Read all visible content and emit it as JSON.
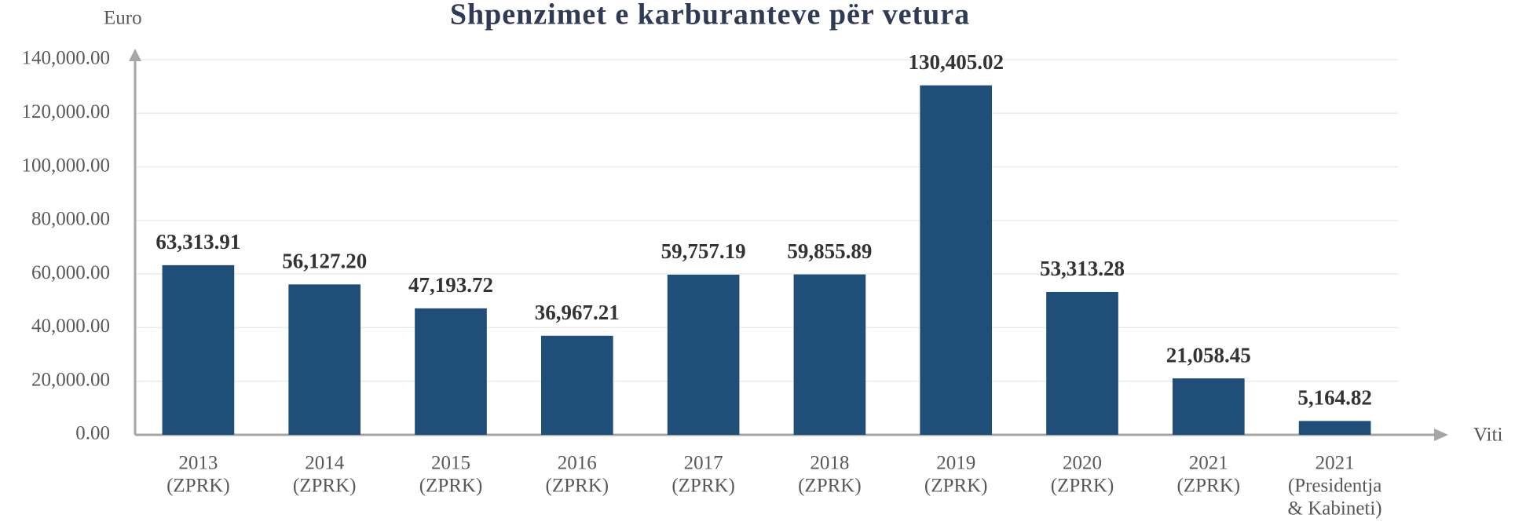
{
  "chart_data": {
    "type": "bar",
    "title": "Shpenzimet e karburanteve për vetura",
    "y_label": "Euro",
    "x_label": "Viti",
    "categories": [
      [
        "2013",
        "(ZPRK)"
      ],
      [
        "2014",
        "(ZPRK)"
      ],
      [
        "2015",
        "(ZPRK)"
      ],
      [
        "2016",
        "(ZPRK)"
      ],
      [
        "2017",
        "(ZPRK)"
      ],
      [
        "2018",
        "(ZPRK)"
      ],
      [
        "2019",
        "(ZPRK)"
      ],
      [
        "2020",
        "(ZPRK)"
      ],
      [
        "2021",
        "(ZPRK)"
      ],
      [
        "2021",
        "(Presidentja",
        "& Kabineti)"
      ]
    ],
    "values": [
      63313.91,
      56127.2,
      47193.72,
      36967.21,
      59757.19,
      59855.89,
      130405.02,
      53313.28,
      21058.45,
      5164.82
    ],
    "value_labels": [
      "63,313.91",
      "56,127.20",
      "47,193.72",
      "36,967.21",
      "59,757.19",
      "59,855.89",
      "130,405.02",
      "53,313.28",
      "21,058.45",
      "5,164.82"
    ],
    "color": "#1f4e79",
    "ylim": [
      0,
      140000
    ],
    "yticks": [
      {
        "value": 0,
        "label": "0.00"
      },
      {
        "value": 20000,
        "label": "20,000.00"
      },
      {
        "value": 40000,
        "label": "40,000.00"
      },
      {
        "value": 60000,
        "label": "60,000.00"
      },
      {
        "value": 80000,
        "label": "80,000.00"
      },
      {
        "value": 100000,
        "label": "100,000.00"
      },
      {
        "value": 120000,
        "label": "120,000.00"
      },
      {
        "value": 140000,
        "label": "140,000.00"
      }
    ],
    "grid": true
  }
}
